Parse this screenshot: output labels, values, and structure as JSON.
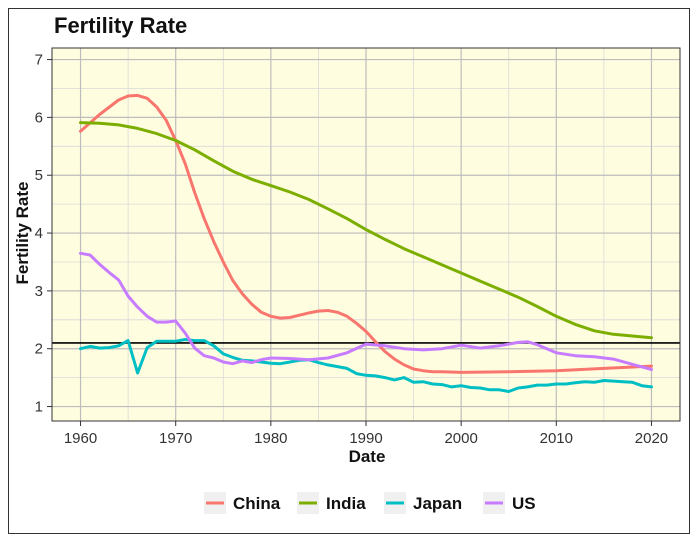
{
  "chart_data": {
    "type": "line",
    "title": "Fertility Rate",
    "xlabel": "Date",
    "ylabel": "Fertility Rate",
    "xlim": [
      1957,
      2023
    ],
    "ylim": [
      0.75,
      7.2
    ],
    "x_ticks": [
      1960,
      1970,
      1980,
      1990,
      2000,
      2010,
      2020
    ],
    "y_ticks": [
      1,
      2,
      3,
      4,
      5,
      6,
      7
    ],
    "grid": true,
    "legend_position": "bottom",
    "background_color": "#fffde0",
    "reference_line": {
      "y": 2.1,
      "color": "#000000"
    },
    "series": [
      {
        "name": "China",
        "color": "#f8766d",
        "x": [
          1960,
          1962,
          1964,
          1965,
          1966,
          1967,
          1968,
          1969,
          1970,
          1971,
          1972,
          1973,
          1974,
          1975,
          1976,
          1977,
          1978,
          1979,
          1980,
          1981,
          1982,
          1983,
          1984,
          1985,
          1986,
          1987,
          1988,
          1989,
          1990,
          1991,
          1992,
          1993,
          1994,
          1995,
          1996,
          1997,
          1998,
          2000,
          2005,
          2010,
          2015,
          2020
        ],
        "values": [
          5.76,
          6.05,
          6.3,
          6.37,
          6.38,
          6.33,
          6.18,
          5.95,
          5.6,
          5.2,
          4.7,
          4.25,
          3.85,
          3.5,
          3.18,
          2.95,
          2.77,
          2.63,
          2.56,
          2.53,
          2.54,
          2.58,
          2.62,
          2.65,
          2.66,
          2.63,
          2.56,
          2.44,
          2.3,
          2.12,
          1.95,
          1.82,
          1.72,
          1.65,
          1.62,
          1.6,
          1.6,
          1.59,
          1.6,
          1.62,
          1.66,
          1.7
        ]
      },
      {
        "name": "India",
        "color": "#7cae00",
        "x": [
          1960,
          1962,
          1964,
          1966,
          1968,
          1970,
          1972,
          1974,
          1976,
          1978,
          1980,
          1982,
          1984,
          1986,
          1988,
          1990,
          1992,
          1994,
          1996,
          1998,
          2000,
          2002,
          2004,
          2006,
          2008,
          2010,
          2012,
          2014,
          2016,
          2018,
          2020
        ],
        "values": [
          5.91,
          5.9,
          5.87,
          5.81,
          5.72,
          5.6,
          5.44,
          5.25,
          5.07,
          4.93,
          4.82,
          4.71,
          4.58,
          4.42,
          4.25,
          4.06,
          3.89,
          3.73,
          3.59,
          3.45,
          3.31,
          3.17,
          3.03,
          2.89,
          2.73,
          2.56,
          2.42,
          2.31,
          2.25,
          2.22,
          2.19
        ]
      },
      {
        "name": "Japan",
        "color": "#00bfc4",
        "x": [
          1960,
          1961,
          1962,
          1963,
          1964,
          1965,
          1966,
          1967,
          1968,
          1969,
          1970,
          1971,
          1972,
          1973,
          1974,
          1975,
          1976,
          1977,
          1978,
          1979,
          1980,
          1981,
          1982,
          1983,
          1984,
          1985,
          1986,
          1987,
          1988,
          1989,
          1990,
          1991,
          1992,
          1993,
          1994,
          1995,
          1996,
          1997,
          1998,
          1999,
          2000,
          2001,
          2002,
          2003,
          2004,
          2005,
          2006,
          2007,
          2008,
          2009,
          2010,
          2011,
          2012,
          2013,
          2014,
          2015,
          2016,
          2017,
          2018,
          2019,
          2020
        ],
        "values": [
          2.0,
          2.04,
          2.01,
          2.02,
          2.05,
          2.14,
          1.58,
          2.02,
          2.13,
          2.13,
          2.13,
          2.16,
          2.14,
          2.14,
          2.05,
          1.91,
          1.85,
          1.8,
          1.79,
          1.77,
          1.75,
          1.74,
          1.77,
          1.8,
          1.81,
          1.76,
          1.72,
          1.69,
          1.66,
          1.57,
          1.54,
          1.53,
          1.5,
          1.46,
          1.5,
          1.42,
          1.43,
          1.39,
          1.38,
          1.34,
          1.36,
          1.33,
          1.32,
          1.29,
          1.29,
          1.26,
          1.32,
          1.34,
          1.37,
          1.37,
          1.39,
          1.39,
          1.41,
          1.43,
          1.42,
          1.45,
          1.44,
          1.43,
          1.42,
          1.36,
          1.34
        ]
      },
      {
        "name": "US",
        "color": "#c77cff",
        "x": [
          1960,
          1961,
          1962,
          1963,
          1964,
          1965,
          1966,
          1967,
          1968,
          1969,
          1970,
          1971,
          1972,
          1973,
          1974,
          1975,
          1976,
          1977,
          1978,
          1979,
          1980,
          1982,
          1984,
          1986,
          1988,
          1990,
          1992,
          1994,
          1996,
          1998,
          2000,
          2002,
          2004,
          2006,
          2007,
          2008,
          2010,
          2012,
          2014,
          2016,
          2018,
          2020
        ],
        "values": [
          3.65,
          3.62,
          3.46,
          3.32,
          3.19,
          2.91,
          2.72,
          2.56,
          2.46,
          2.46,
          2.48,
          2.27,
          2.01,
          1.88,
          1.84,
          1.77,
          1.74,
          1.79,
          1.76,
          1.81,
          1.84,
          1.83,
          1.81,
          1.84,
          1.93,
          2.08,
          2.05,
          2.0,
          1.98,
          2.0,
          2.06,
          2.01,
          2.05,
          2.11,
          2.12,
          2.07,
          1.93,
          1.88,
          1.86,
          1.82,
          1.73,
          1.64
        ]
      }
    ]
  }
}
